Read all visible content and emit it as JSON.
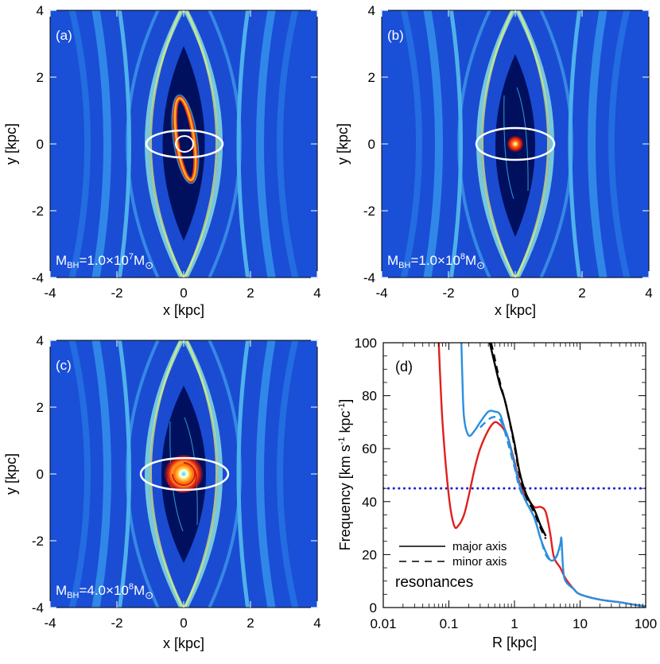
{
  "colors": {
    "background": "#00105e",
    "shock": "#2f8eff",
    "filament": "#7fe8d8",
    "bright": "#f4f26a",
    "resonance_red": "#e0201c",
    "resonance_blue": "#2a8ee0",
    "pattern_speed": "#1f1fd4",
    "omega": "#000000"
  },
  "maps": [
    {
      "panel": "(a)",
      "mass_label": {
        "base": "M",
        "sub": "BH",
        "mid": "=1.0×10",
        "sup": "7",
        "unit": "M",
        "unit_sub": "⊙"
      },
      "bh_mass_msun": 10000000.0,
      "central_feature": "elongated nuclear ring"
    },
    {
      "panel": "(b)",
      "mass_label": {
        "base": "M",
        "sub": "BH",
        "mid": "=1.0×10",
        "sup": "8",
        "unit": "M",
        "unit_sub": "⊙"
      },
      "bh_mass_msun": 100000000.0,
      "central_feature": "compact nuclear disk"
    },
    {
      "panel": "(c)",
      "mass_label": {
        "base": "M",
        "sub": "BH",
        "mid": "=4.0×10",
        "sup": "8",
        "unit": "M",
        "unit_sub": "⊙"
      },
      "bh_mass_msun": 400000000.0,
      "central_feature": "nuclear spiral disk"
    }
  ],
  "map_axes": {
    "xlabel": "x [kpc]",
    "ylabel": "y [kpc]",
    "xlim": [
      -4,
      4
    ],
    "ylim": [
      -4,
      4
    ],
    "xticks": [
      "-4",
      "-2",
      "0",
      "2",
      "4"
    ],
    "yticks": [
      "-4",
      "-2",
      "0",
      "2",
      "4"
    ]
  },
  "chart_data": {
    "type": "line",
    "panel": "(d)",
    "xlabel": "R [kpc]",
    "ylabel": {
      "main": "Frequency [km s",
      "sup1": "-1",
      "mid": " kpc",
      "sup2": "-1",
      "end": "]"
    },
    "xscale": "log",
    "xlim": [
      0.01,
      100
    ],
    "ylim": [
      0,
      100
    ],
    "xticks": [
      "0.01",
      "0.1",
      "1",
      "10",
      "100"
    ],
    "yticks": [
      "0",
      "20",
      "40",
      "60",
      "80",
      "100"
    ],
    "legend": {
      "placement": "bottom-left",
      "entries": [
        "major axis",
        "minor axis",
        "resonances"
      ]
    },
    "series": [
      {
        "name": "Omega major axis",
        "color": "#000000",
        "style": "solid",
        "R": [
          0.42,
          0.5,
          0.6,
          0.7,
          0.8,
          1.0,
          1.2,
          1.5,
          2.0,
          2.5,
          3.0
        ],
        "values": [
          100,
          92,
          84,
          79,
          73,
          62,
          51,
          43,
          37,
          31,
          27
        ]
      },
      {
        "name": "Omega minor axis",
        "color": "#000000",
        "style": "dashed",
        "R": [
          0.44,
          0.5,
          0.6,
          0.7,
          0.8,
          1.0,
          1.2,
          1.5,
          2.0,
          2.5,
          3.0
        ],
        "values": [
          100,
          94,
          85,
          79,
          73,
          61,
          50,
          42,
          36,
          30,
          26
        ]
      },
      {
        "name": "Omega - kappa/2 (red)",
        "color": "#e0201c",
        "style": "solid",
        "R": [
          0.07,
          0.08,
          0.1,
          0.12,
          0.14,
          0.17,
          0.2,
          0.25,
          0.3,
          0.4,
          0.5,
          0.6,
          0.7,
          0.8,
          1.0,
          1.2,
          1.5,
          2.0,
          2.5,
          3.0,
          3.5,
          4.0,
          5.0,
          6.0,
          8.0,
          10,
          20,
          40,
          70,
          100
        ],
        "values": [
          100,
          70,
          42,
          31,
          31,
          35,
          42,
          53,
          60,
          67,
          70,
          69,
          67,
          64,
          55,
          47,
          42,
          38,
          38,
          36,
          28,
          19,
          15,
          11,
          7,
          5,
          3,
          2,
          1,
          0.5
        ]
      },
      {
        "name": "Omega - kappa/2 major axis (blue)",
        "color": "#2a8ee0",
        "style": "solid",
        "R": [
          0.155,
          0.16,
          0.17,
          0.2,
          0.25,
          0.3,
          0.4,
          0.5,
          0.6,
          0.7,
          0.8,
          1.0,
          1.2,
          1.5,
          2.0,
          2.5,
          3.0,
          3.5,
          4.0,
          4.5,
          5.0,
          5.2,
          5.5,
          6.0,
          8.0,
          10,
          20,
          40,
          70,
          100
        ],
        "values": [
          100,
          88,
          72,
          65,
          67,
          70,
          74,
          74,
          73,
          68,
          64,
          54,
          46,
          40,
          34,
          26,
          21,
          18,
          18,
          20,
          24,
          26,
          15,
          10,
          7,
          5,
          3,
          2,
          1,
          0.5
        ]
      },
      {
        "name": "Omega - kappa/2 minor axis (blue dashed)",
        "color": "#2a8ee0",
        "style": "dashed",
        "R": [
          0.3,
          0.4,
          0.5,
          0.6,
          0.7,
          0.8,
          1.0,
          1.2,
          1.5,
          2.0,
          2.5,
          3.0,
          3.5,
          4.0,
          5.0
        ],
        "values": [
          68,
          71,
          72,
          71,
          67,
          62,
          53,
          45,
          40,
          34,
          26,
          20,
          18,
          18,
          22
        ]
      },
      {
        "name": "Pattern speed",
        "color": "#1f1fd4",
        "style": "dotted",
        "R": [
          0.01,
          100
        ],
        "values": [
          45,
          45
        ]
      }
    ]
  }
}
